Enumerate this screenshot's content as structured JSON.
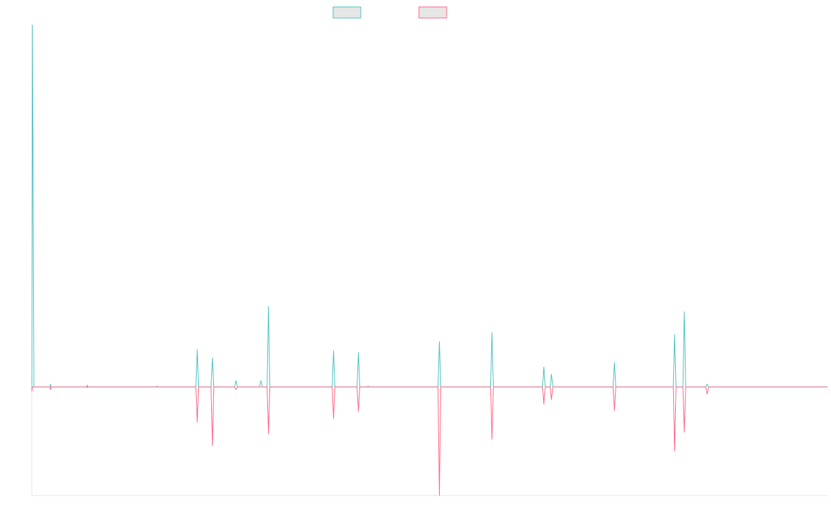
{
  "chart_data": {
    "type": "line",
    "title": "",
    "xlabel": "",
    "ylabel": "",
    "grid": false,
    "legend_position": "top-center",
    "ylim": [
      -12,
      40
    ],
    "x_count": 1150,
    "baseline": 0,
    "series": [
      {
        "name": "",
        "color": "#4bc0c0",
        "fill": "#e6e6e6",
        "points": [
          [
            0,
            -0.5
          ],
          [
            1,
            40
          ],
          [
            3,
            0
          ],
          [
            26,
            0
          ],
          [
            27,
            0.3
          ],
          [
            28,
            0
          ],
          [
            79,
            0
          ],
          [
            80,
            0.2
          ],
          [
            81,
            0
          ],
          [
            180,
            0
          ],
          [
            181,
            0.1
          ],
          [
            182,
            0
          ],
          [
            237,
            0
          ],
          [
            239,
            4.1
          ],
          [
            241,
            0
          ],
          [
            259,
            0
          ],
          [
            261,
            3.2
          ],
          [
            263,
            0
          ],
          [
            293,
            0
          ],
          [
            295,
            0.7
          ],
          [
            297,
            0
          ],
          [
            329,
            0
          ],
          [
            331,
            0.7
          ],
          [
            333,
            0
          ],
          [
            340,
            0
          ],
          [
            342,
            8.9
          ],
          [
            344,
            0
          ],
          [
            434,
            0
          ],
          [
            436,
            4.0
          ],
          [
            438,
            0
          ],
          [
            470,
            0
          ],
          [
            472,
            3.8
          ],
          [
            474,
            0
          ],
          [
            485,
            0
          ],
          [
            486,
            0.1
          ],
          [
            487,
            0
          ],
          [
            587,
            0
          ],
          [
            589,
            5.0
          ],
          [
            591,
            0
          ],
          [
            663,
            0
          ],
          [
            665,
            6.0
          ],
          [
            667,
            0
          ],
          [
            738,
            0
          ],
          [
            740,
            2.2
          ],
          [
            742,
            0
          ],
          [
            749,
            0
          ],
          [
            751,
            1.4
          ],
          [
            753,
            0
          ],
          [
            840,
            0
          ],
          [
            842,
            2.7
          ],
          [
            844,
            0
          ],
          [
            927,
            0
          ],
          [
            929,
            5.8
          ],
          [
            931,
            0
          ],
          [
            941,
            0
          ],
          [
            943,
            8.3
          ],
          [
            945,
            0
          ],
          [
            974,
            0
          ],
          [
            976,
            0.3
          ],
          [
            978,
            0
          ],
          [
            1150,
            0
          ]
        ]
      },
      {
        "name": "",
        "color": "#ff6384",
        "fill": "#e6e6e6",
        "points": [
          [
            0,
            -0.5
          ],
          [
            1,
            0
          ],
          [
            26,
            0
          ],
          [
            27,
            -0.3
          ],
          [
            28,
            0
          ],
          [
            79,
            0
          ],
          [
            80,
            -0.1
          ],
          [
            81,
            0
          ],
          [
            237,
            0
          ],
          [
            239,
            -3.9
          ],
          [
            241,
            0
          ],
          [
            259,
            0
          ],
          [
            261,
            -6.5
          ],
          [
            263,
            0
          ],
          [
            293,
            0
          ],
          [
            295,
            -0.3
          ],
          [
            297,
            0
          ],
          [
            340,
            0
          ],
          [
            342,
            -5.2
          ],
          [
            344,
            0
          ],
          [
            434,
            0
          ],
          [
            436,
            -3.5
          ],
          [
            438,
            0
          ],
          [
            470,
            0
          ],
          [
            472,
            -2.7
          ],
          [
            474,
            0
          ],
          [
            587,
            0
          ],
          [
            589,
            -12.0
          ],
          [
            591,
            0
          ],
          [
            663,
            0
          ],
          [
            665,
            -5.8
          ],
          [
            667,
            0
          ],
          [
            738,
            0
          ],
          [
            740,
            -1.9
          ],
          [
            742,
            0
          ],
          [
            749,
            0
          ],
          [
            751,
            -1.4
          ],
          [
            753,
            0
          ],
          [
            840,
            0
          ],
          [
            842,
            -2.6
          ],
          [
            844,
            0
          ],
          [
            927,
            0
          ],
          [
            929,
            -7.1
          ],
          [
            931,
            0
          ],
          [
            941,
            0
          ],
          [
            943,
            -5.0
          ],
          [
            945,
            0
          ],
          [
            974,
            0
          ],
          [
            976,
            -0.8
          ],
          [
            978,
            0
          ],
          [
            1150,
            0
          ]
        ]
      }
    ]
  }
}
